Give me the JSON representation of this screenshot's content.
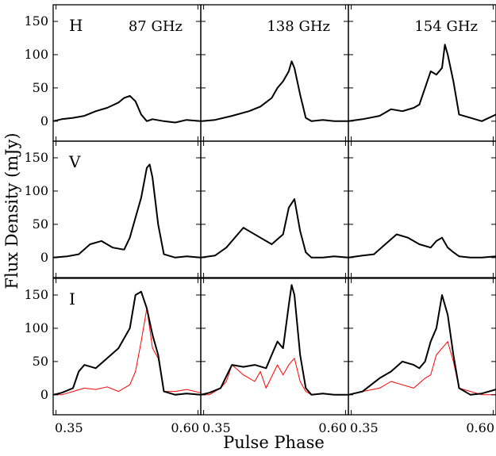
{
  "chart_data": {
    "type": "line",
    "xlabel": "Pulse Phase",
    "ylabel": "Flux Density (mJy)",
    "xlim": [
      0.345,
      0.605
    ],
    "ylim": [
      -30,
      175
    ],
    "x_ticks": [
      "0.35",
      "0.60"
    ],
    "y_ticks": [
      "0",
      "50",
      "100",
      "150"
    ],
    "rows": [
      "H",
      "V",
      "I"
    ],
    "columns": [
      "87 GHz",
      "138 GHz",
      "154 GHz"
    ],
    "grid": false,
    "legend": "none",
    "series_style": {
      "profile": {
        "color": "#000000"
      },
      "overlay": {
        "color": "#ff0000"
      }
    },
    "panels": [
      {
        "row": "H",
        "column": "87 GHz",
        "series": [
          {
            "style": "profile",
            "x": [
              0.345,
              0.36,
              0.38,
              0.4,
              0.42,
              0.44,
              0.46,
              0.47,
              0.48,
              0.49,
              0.5,
              0.51,
              0.52,
              0.54,
              0.56,
              0.58,
              0.605
            ],
            "y": [
              0,
              3,
              5,
              8,
              15,
              20,
              28,
              35,
              38,
              30,
              10,
              0,
              3,
              0,
              -2,
              2,
              0
            ]
          }
        ]
      },
      {
        "row": "H",
        "column": "138 GHz",
        "series": [
          {
            "style": "profile",
            "x": [
              0.345,
              0.37,
              0.4,
              0.43,
              0.45,
              0.47,
              0.48,
              0.49,
              0.5,
              0.505,
              0.51,
              0.52,
              0.53,
              0.54,
              0.56,
              0.58,
              0.605
            ],
            "y": [
              0,
              2,
              8,
              15,
              22,
              35,
              50,
              60,
              75,
              90,
              80,
              40,
              5,
              0,
              2,
              0,
              0
            ]
          }
        ]
      },
      {
        "row": "H",
        "column": "154 GHz",
        "series": [
          {
            "style": "profile",
            "x": [
              0.345,
              0.37,
              0.4,
              0.42,
              0.44,
              0.46,
              0.47,
              0.48,
              0.49,
              0.5,
              0.51,
              0.515,
              0.52,
              0.53,
              0.54,
              0.56,
              0.58,
              0.605
            ],
            "y": [
              0,
              3,
              8,
              18,
              15,
              20,
              25,
              50,
              75,
              70,
              80,
              115,
              100,
              60,
              10,
              5,
              0,
              10
            ]
          }
        ]
      },
      {
        "row": "V",
        "column": "87 GHz",
        "series": [
          {
            "style": "profile",
            "x": [
              0.345,
              0.37,
              0.39,
              0.41,
              0.43,
              0.45,
              0.47,
              0.48,
              0.49,
              0.5,
              0.51,
              0.515,
              0.52,
              0.53,
              0.54,
              0.56,
              0.58,
              0.605
            ],
            "y": [
              0,
              2,
              5,
              20,
              25,
              15,
              12,
              30,
              60,
              90,
              135,
              140,
              120,
              50,
              5,
              0,
              2,
              0
            ]
          }
        ]
      },
      {
        "row": "V",
        "column": "138 GHz",
        "series": [
          {
            "style": "profile",
            "x": [
              0.345,
              0.37,
              0.39,
              0.41,
              0.42,
              0.43,
              0.45,
              0.47,
              0.49,
              0.5,
              0.51,
              0.52,
              0.53,
              0.54,
              0.56,
              0.58,
              0.605
            ],
            "y": [
              0,
              3,
              15,
              35,
              45,
              40,
              30,
              20,
              35,
              75,
              88,
              40,
              8,
              0,
              0,
              2,
              0
            ]
          }
        ]
      },
      {
        "row": "V",
        "column": "154 GHz",
        "series": [
          {
            "style": "profile",
            "x": [
              0.345,
              0.37,
              0.39,
              0.41,
              0.43,
              0.45,
              0.47,
              0.49,
              0.5,
              0.51,
              0.52,
              0.53,
              0.54,
              0.56,
              0.58,
              0.605
            ],
            "y": [
              0,
              3,
              5,
              20,
              35,
              30,
              20,
              15,
              25,
              30,
              15,
              8,
              2,
              0,
              0,
              2
            ]
          }
        ]
      },
      {
        "row": "I",
        "column": "87 GHz",
        "series": [
          {
            "style": "profile",
            "x": [
              0.345,
              0.36,
              0.38,
              0.39,
              0.4,
              0.42,
              0.44,
              0.46,
              0.48,
              0.49,
              0.5,
              0.51,
              0.52,
              0.53,
              0.54,
              0.56,
              0.58,
              0.605
            ],
            "y": [
              0,
              3,
              10,
              35,
              45,
              40,
              55,
              70,
              100,
              150,
              155,
              130,
              90,
              60,
              5,
              0,
              2,
              0
            ]
          },
          {
            "style": "overlay",
            "x": [
              0.345,
              0.36,
              0.38,
              0.4,
              0.42,
              0.44,
              0.46,
              0.47,
              0.48,
              0.49,
              0.5,
              0.51,
              0.515,
              0.52,
              0.53,
              0.54,
              0.56,
              0.58,
              0.605
            ],
            "y": [
              0,
              0,
              5,
              10,
              8,
              12,
              5,
              10,
              15,
              35,
              80,
              130,
              100,
              70,
              55,
              5,
              5,
              8,
              3
            ]
          }
        ]
      },
      {
        "row": "I",
        "column": "138 GHz",
        "series": [
          {
            "style": "profile",
            "x": [
              0.345,
              0.36,
              0.38,
              0.4,
              0.42,
              0.44,
              0.46,
              0.47,
              0.48,
              0.49,
              0.5,
              0.505,
              0.51,
              0.52,
              0.53,
              0.54,
              0.56,
              0.58,
              0.605
            ],
            "y": [
              0,
              3,
              10,
              45,
              42,
              45,
              40,
              60,
              80,
              70,
              135,
              165,
              150,
              60,
              10,
              0,
              2,
              0,
              0
            ]
          },
          {
            "style": "overlay",
            "x": [
              0.345,
              0.36,
              0.38,
              0.39,
              0.4,
              0.42,
              0.44,
              0.45,
              0.46,
              0.48,
              0.49,
              0.5,
              0.51,
              0.52,
              0.53,
              0.54,
              0.56,
              0.58,
              0.605
            ],
            "y": [
              0,
              0,
              10,
              20,
              45,
              30,
              20,
              35,
              10,
              45,
              30,
              45,
              55,
              20,
              5,
              0,
              2,
              0,
              0
            ]
          }
        ]
      },
      {
        "row": "I",
        "column": "154 GHz",
        "series": [
          {
            "style": "profile",
            "x": [
              0.345,
              0.37,
              0.4,
              0.42,
              0.44,
              0.46,
              0.47,
              0.48,
              0.49,
              0.5,
              0.51,
              0.52,
              0.53,
              0.54,
              0.56,
              0.58,
              0.605
            ],
            "y": [
              0,
              5,
              25,
              35,
              50,
              45,
              40,
              50,
              80,
              100,
              150,
              120,
              60,
              10,
              0,
              2,
              8
            ]
          },
          {
            "style": "overlay",
            "x": [
              0.345,
              0.37,
              0.4,
              0.42,
              0.44,
              0.46,
              0.48,
              0.49,
              0.5,
              0.51,
              0.52,
              0.53,
              0.54,
              0.56,
              0.58,
              0.605
            ],
            "y": [
              0,
              5,
              10,
              20,
              15,
              10,
              25,
              30,
              60,
              70,
              80,
              50,
              10,
              5,
              0,
              0
            ]
          }
        ]
      }
    ]
  }
}
